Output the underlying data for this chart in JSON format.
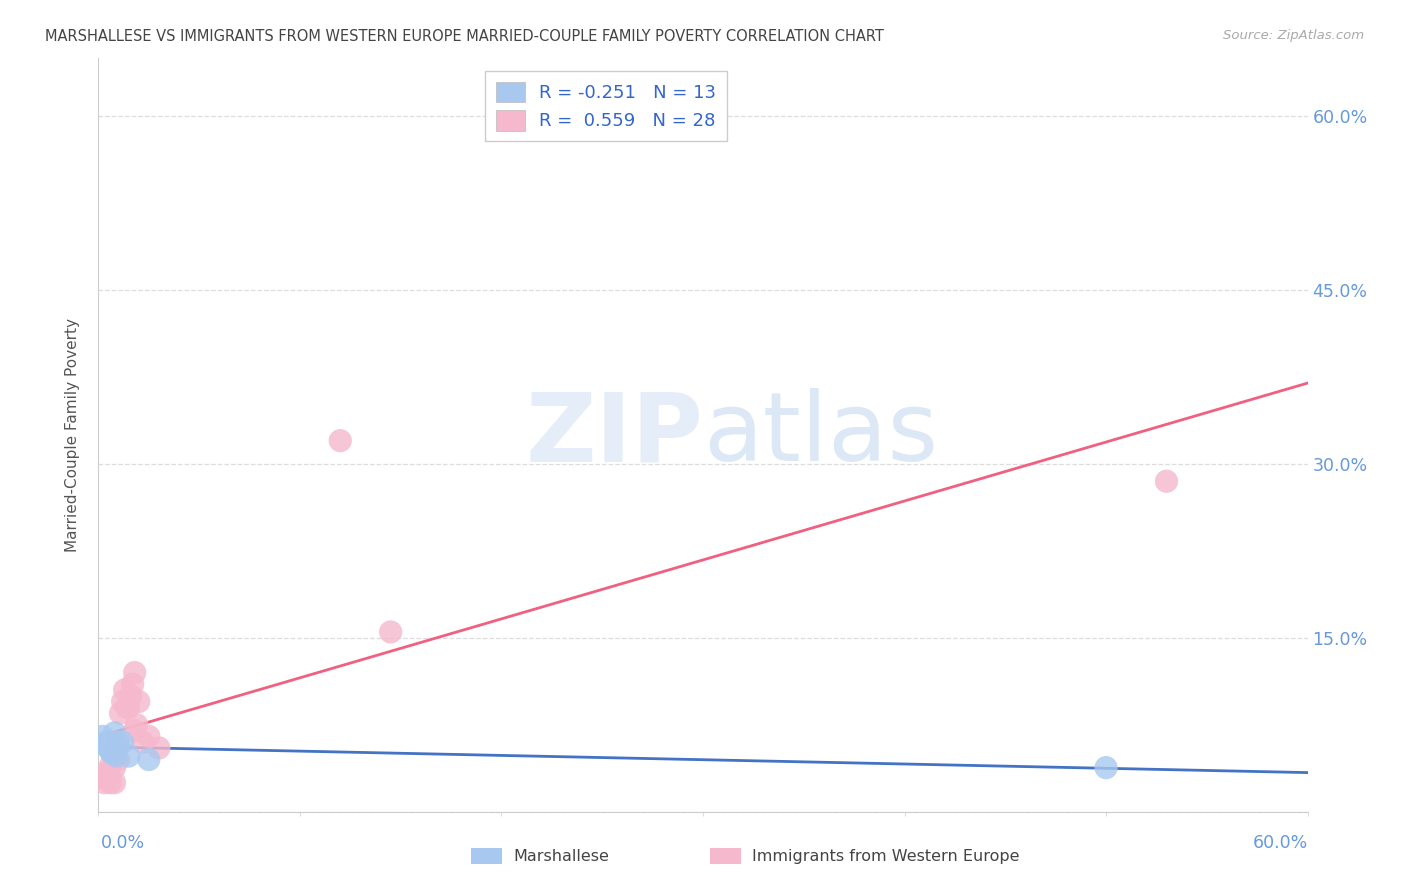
{
  "title": "MARSHALLESE VS IMMIGRANTS FROM WESTERN EUROPE MARRIED-COUPLE FAMILY POVERTY CORRELATION CHART",
  "source": "Source: ZipAtlas.com",
  "ylabel": "Married-Couple Family Poverty",
  "xlim": [
    0.0,
    0.6
  ],
  "ylim": [
    0.0,
    0.65
  ],
  "ytick_vals": [
    0.0,
    0.15,
    0.3,
    0.45,
    0.6
  ],
  "ytick_labels": [
    "",
    "15.0%",
    "30.0%",
    "45.0%",
    "60.0%"
  ],
  "watermark_zip": "ZIP",
  "watermark_atlas": "atlas",
  "legend_r1": "R = -0.251   N = 13",
  "legend_r2": "R =  0.559   N = 28",
  "marshallese_x": [
    0.002,
    0.003,
    0.004,
    0.005,
    0.006,
    0.007,
    0.008,
    0.009,
    0.01,
    0.012,
    0.015,
    0.025,
    0.5
  ],
  "marshallese_y": [
    0.065,
    0.058,
    0.06,
    0.055,
    0.052,
    0.05,
    0.068,
    0.048,
    0.058,
    0.06,
    0.048,
    0.045,
    0.038
  ],
  "western_x": [
    0.002,
    0.003,
    0.004,
    0.005,
    0.006,
    0.006,
    0.007,
    0.008,
    0.008,
    0.009,
    0.01,
    0.011,
    0.012,
    0.013,
    0.014,
    0.015,
    0.016,
    0.017,
    0.018,
    0.018,
    0.019,
    0.02,
    0.022,
    0.025,
    0.03,
    0.12,
    0.145,
    0.53
  ],
  "western_y": [
    0.03,
    0.025,
    0.028,
    0.035,
    0.04,
    0.025,
    0.05,
    0.038,
    0.025,
    0.06,
    0.045,
    0.085,
    0.095,
    0.105,
    0.09,
    0.09,
    0.1,
    0.11,
    0.12,
    0.07,
    0.075,
    0.095,
    0.06,
    0.065,
    0.055,
    0.32,
    0.155,
    0.285
  ],
  "marsh_scatter_color": "#A8C8F0",
  "west_scatter_color": "#F5B8CC",
  "marsh_line_color": "#4472C4",
  "west_line_color": "#F06080",
  "background_color": "#FFFFFF",
  "grid_color": "#DDDDDD",
  "right_tick_color": "#6699DD",
  "source_color": "#AAAAAA",
  "title_color": "#444444",
  "ylabel_color": "#555555",
  "watermark_color": "#C5D8F0",
  "legend_text_color": "#3366CC"
}
